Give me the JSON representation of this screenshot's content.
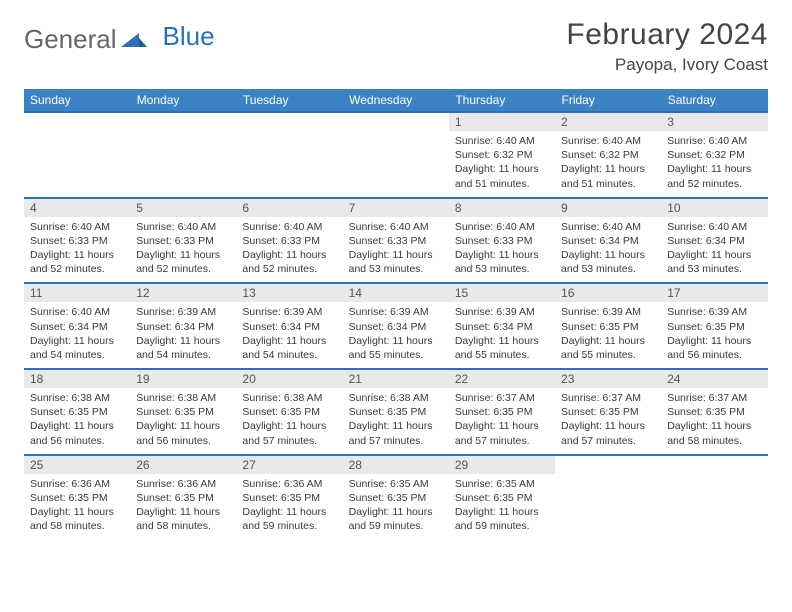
{
  "brand": {
    "part1": "General",
    "part2": "Blue"
  },
  "title": "February 2024",
  "location": "Payopa, Ivory Coast",
  "colors": {
    "header_bg": "#3a82c4",
    "week_sep": "#2a71b8",
    "daynum_bg": "#e9e9e9",
    "text": "#333333",
    "brand_gray": "#666666",
    "brand_blue": "#2a71b8"
  },
  "day_headers": [
    "Sunday",
    "Monday",
    "Tuesday",
    "Wednesday",
    "Thursday",
    "Friday",
    "Saturday"
  ],
  "weeks": [
    [
      {
        "n": "",
        "sr": "",
        "ss": "",
        "dl": ""
      },
      {
        "n": "",
        "sr": "",
        "ss": "",
        "dl": ""
      },
      {
        "n": "",
        "sr": "",
        "ss": "",
        "dl": ""
      },
      {
        "n": "",
        "sr": "",
        "ss": "",
        "dl": ""
      },
      {
        "n": "1",
        "sr": "Sunrise: 6:40 AM",
        "ss": "Sunset: 6:32 PM",
        "dl": "Daylight: 11 hours and 51 minutes."
      },
      {
        "n": "2",
        "sr": "Sunrise: 6:40 AM",
        "ss": "Sunset: 6:32 PM",
        "dl": "Daylight: 11 hours and 51 minutes."
      },
      {
        "n": "3",
        "sr": "Sunrise: 6:40 AM",
        "ss": "Sunset: 6:32 PM",
        "dl": "Daylight: 11 hours and 52 minutes."
      }
    ],
    [
      {
        "n": "4",
        "sr": "Sunrise: 6:40 AM",
        "ss": "Sunset: 6:33 PM",
        "dl": "Daylight: 11 hours and 52 minutes."
      },
      {
        "n": "5",
        "sr": "Sunrise: 6:40 AM",
        "ss": "Sunset: 6:33 PM",
        "dl": "Daylight: 11 hours and 52 minutes."
      },
      {
        "n": "6",
        "sr": "Sunrise: 6:40 AM",
        "ss": "Sunset: 6:33 PM",
        "dl": "Daylight: 11 hours and 52 minutes."
      },
      {
        "n": "7",
        "sr": "Sunrise: 6:40 AM",
        "ss": "Sunset: 6:33 PM",
        "dl": "Daylight: 11 hours and 53 minutes."
      },
      {
        "n": "8",
        "sr": "Sunrise: 6:40 AM",
        "ss": "Sunset: 6:33 PM",
        "dl": "Daylight: 11 hours and 53 minutes."
      },
      {
        "n": "9",
        "sr": "Sunrise: 6:40 AM",
        "ss": "Sunset: 6:34 PM",
        "dl": "Daylight: 11 hours and 53 minutes."
      },
      {
        "n": "10",
        "sr": "Sunrise: 6:40 AM",
        "ss": "Sunset: 6:34 PM",
        "dl": "Daylight: 11 hours and 53 minutes."
      }
    ],
    [
      {
        "n": "11",
        "sr": "Sunrise: 6:40 AM",
        "ss": "Sunset: 6:34 PM",
        "dl": "Daylight: 11 hours and 54 minutes."
      },
      {
        "n": "12",
        "sr": "Sunrise: 6:39 AM",
        "ss": "Sunset: 6:34 PM",
        "dl": "Daylight: 11 hours and 54 minutes."
      },
      {
        "n": "13",
        "sr": "Sunrise: 6:39 AM",
        "ss": "Sunset: 6:34 PM",
        "dl": "Daylight: 11 hours and 54 minutes."
      },
      {
        "n": "14",
        "sr": "Sunrise: 6:39 AM",
        "ss": "Sunset: 6:34 PM",
        "dl": "Daylight: 11 hours and 55 minutes."
      },
      {
        "n": "15",
        "sr": "Sunrise: 6:39 AM",
        "ss": "Sunset: 6:34 PM",
        "dl": "Daylight: 11 hours and 55 minutes."
      },
      {
        "n": "16",
        "sr": "Sunrise: 6:39 AM",
        "ss": "Sunset: 6:35 PM",
        "dl": "Daylight: 11 hours and 55 minutes."
      },
      {
        "n": "17",
        "sr": "Sunrise: 6:39 AM",
        "ss": "Sunset: 6:35 PM",
        "dl": "Daylight: 11 hours and 56 minutes."
      }
    ],
    [
      {
        "n": "18",
        "sr": "Sunrise: 6:38 AM",
        "ss": "Sunset: 6:35 PM",
        "dl": "Daylight: 11 hours and 56 minutes."
      },
      {
        "n": "19",
        "sr": "Sunrise: 6:38 AM",
        "ss": "Sunset: 6:35 PM",
        "dl": "Daylight: 11 hours and 56 minutes."
      },
      {
        "n": "20",
        "sr": "Sunrise: 6:38 AM",
        "ss": "Sunset: 6:35 PM",
        "dl": "Daylight: 11 hours and 57 minutes."
      },
      {
        "n": "21",
        "sr": "Sunrise: 6:38 AM",
        "ss": "Sunset: 6:35 PM",
        "dl": "Daylight: 11 hours and 57 minutes."
      },
      {
        "n": "22",
        "sr": "Sunrise: 6:37 AM",
        "ss": "Sunset: 6:35 PM",
        "dl": "Daylight: 11 hours and 57 minutes."
      },
      {
        "n": "23",
        "sr": "Sunrise: 6:37 AM",
        "ss": "Sunset: 6:35 PM",
        "dl": "Daylight: 11 hours and 57 minutes."
      },
      {
        "n": "24",
        "sr": "Sunrise: 6:37 AM",
        "ss": "Sunset: 6:35 PM",
        "dl": "Daylight: 11 hours and 58 minutes."
      }
    ],
    [
      {
        "n": "25",
        "sr": "Sunrise: 6:36 AM",
        "ss": "Sunset: 6:35 PM",
        "dl": "Daylight: 11 hours and 58 minutes."
      },
      {
        "n": "26",
        "sr": "Sunrise: 6:36 AM",
        "ss": "Sunset: 6:35 PM",
        "dl": "Daylight: 11 hours and 58 minutes."
      },
      {
        "n": "27",
        "sr": "Sunrise: 6:36 AM",
        "ss": "Sunset: 6:35 PM",
        "dl": "Daylight: 11 hours and 59 minutes."
      },
      {
        "n": "28",
        "sr": "Sunrise: 6:35 AM",
        "ss": "Sunset: 6:35 PM",
        "dl": "Daylight: 11 hours and 59 minutes."
      },
      {
        "n": "29",
        "sr": "Sunrise: 6:35 AM",
        "ss": "Sunset: 6:35 PM",
        "dl": "Daylight: 11 hours and 59 minutes."
      },
      {
        "n": "",
        "sr": "",
        "ss": "",
        "dl": ""
      },
      {
        "n": "",
        "sr": "",
        "ss": "",
        "dl": ""
      }
    ]
  ]
}
